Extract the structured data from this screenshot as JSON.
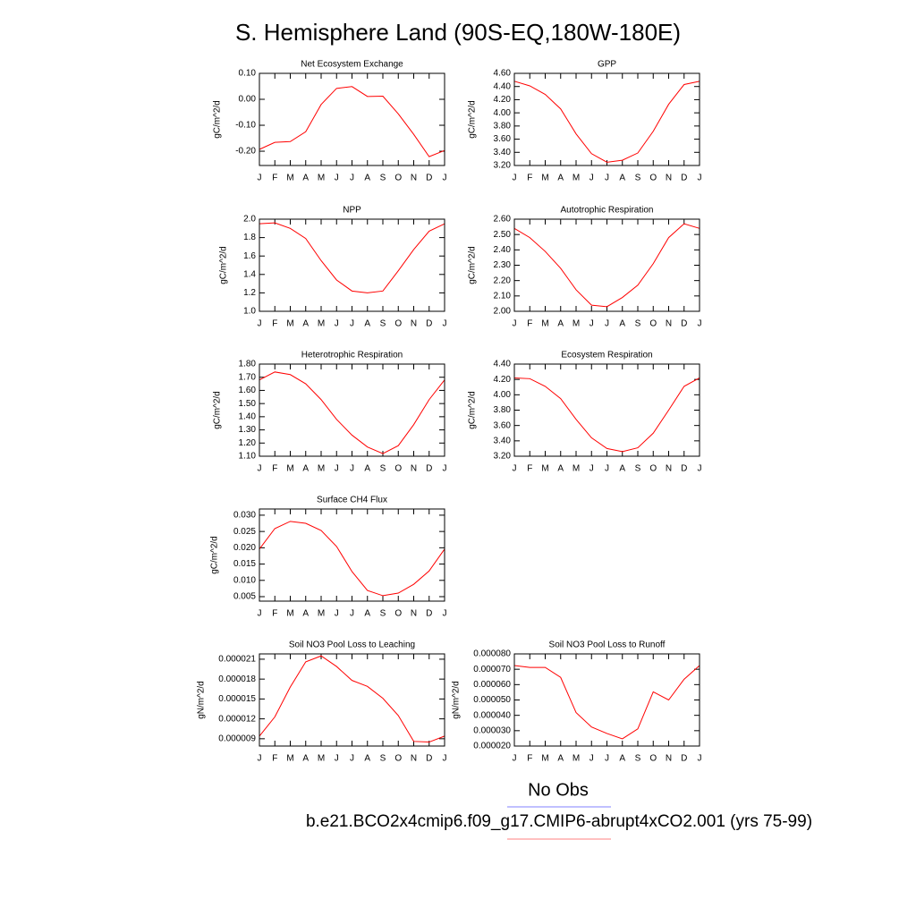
{
  "title": "S. Hemisphere Land (90S-EQ,180W-180E)",
  "legend": [
    {
      "name": "No Obs",
      "color": "#8080ff"
    },
    {
      "name": "b.e21.BCO2x4cmip6.f09_g17.CMIP6-abrupt4xCO2.001 (yrs 75-99)",
      "color": "#ff8080"
    }
  ],
  "chart_data": [
    {
      "type": "line",
      "title": "Net Ecosystem Exchange",
      "ylabel": "gC/m^2/d",
      "color": "#ff0000",
      "categories": [
        "J",
        "F",
        "M",
        "A",
        "M",
        "J",
        "J",
        "A",
        "S",
        "O",
        "N",
        "D",
        "J"
      ],
      "values": [
        -0.193,
        -0.166,
        -0.163,
        -0.125,
        -0.02,
        0.042,
        0.049,
        0.011,
        0.012,
        -0.056,
        -0.135,
        -0.221,
        -0.197
      ],
      "ylim": [
        -0.255,
        0.1
      ],
      "yticks": [
        {
          "value": 0.1,
          "label": "0.10"
        },
        {
          "value": 0,
          "label": "0.00"
        },
        {
          "value": -0.1,
          "label": "-0.10"
        },
        {
          "value": -0.2,
          "label": "-0.20"
        }
      ]
    },
    {
      "type": "line",
      "title": "GPP",
      "ylabel": "gC/m^2/d",
      "color": "#ff0000",
      "categories": [
        "J",
        "F",
        "M",
        "A",
        "M",
        "J",
        "J",
        "A",
        "S",
        "O",
        "N",
        "D",
        "J"
      ],
      "values": [
        4.48,
        4.41,
        4.28,
        4.06,
        3.68,
        3.38,
        3.25,
        3.28,
        3.39,
        3.72,
        4.13,
        4.43,
        4.48
      ],
      "ylim": [
        3.2,
        4.6
      ],
      "yticks": [
        {
          "value": 4.6,
          "label": "4.60"
        },
        {
          "value": 4.4,
          "label": "4.40"
        },
        {
          "value": 4.2,
          "label": "4.20"
        },
        {
          "value": 4.0,
          "label": "4.00"
        },
        {
          "value": 3.8,
          "label": "3.80"
        },
        {
          "value": 3.6,
          "label": "3.60"
        },
        {
          "value": 3.4,
          "label": "3.40"
        },
        {
          "value": 3.2,
          "label": "3.20"
        }
      ]
    },
    {
      "type": "line",
      "title": "NPP",
      "ylabel": "gC/m^2/d",
      "color": "#ff0000",
      "categories": [
        "J",
        "F",
        "M",
        "A",
        "M",
        "J",
        "J",
        "A",
        "S",
        "O",
        "N",
        "D",
        "J"
      ],
      "values": [
        1.95,
        1.96,
        1.9,
        1.79,
        1.55,
        1.34,
        1.22,
        1.2,
        1.22,
        1.44,
        1.67,
        1.87,
        1.95
      ],
      "ylim": [
        1.0,
        2.0
      ],
      "yticks": [
        {
          "value": 2,
          "label": "2.0"
        },
        1.8,
        1.6,
        1.4,
        1.2,
        {
          "value": 1,
          "label": "1.0"
        }
      ]
    },
    {
      "type": "line",
      "title": "Autotrophic Respiration",
      "ylabel": "gC/m^2/d",
      "color": "#ff0000",
      "categories": [
        "J",
        "F",
        "M",
        "A",
        "M",
        "J",
        "J",
        "A",
        "S",
        "O",
        "N",
        "D",
        "J"
      ],
      "values": [
        2.54,
        2.48,
        2.39,
        2.28,
        2.14,
        2.04,
        2.03,
        2.09,
        2.17,
        2.31,
        2.48,
        2.57,
        2.54
      ],
      "ylim": [
        2.0,
        2.6
      ],
      "yticks": [
        {
          "value": 2.6,
          "label": "2.60"
        },
        {
          "value": 2.5,
          "label": "2.50"
        },
        {
          "value": 2.4,
          "label": "2.40"
        },
        {
          "value": 2.3,
          "label": "2.30"
        },
        {
          "value": 2.2,
          "label": "2.20"
        },
        {
          "value": 2.1,
          "label": "2.10"
        },
        {
          "value": 2,
          "label": "2.00"
        }
      ]
    },
    {
      "type": "line",
      "title": "Heterotrophic Respiration",
      "ylabel": "gC/m^2/d",
      "color": "#ff0000",
      "categories": [
        "J",
        "F",
        "M",
        "A",
        "M",
        "J",
        "J",
        "A",
        "S",
        "O",
        "N",
        "D",
        "J"
      ],
      "values": [
        1.68,
        1.74,
        1.72,
        1.65,
        1.53,
        1.38,
        1.26,
        1.17,
        1.12,
        1.18,
        1.34,
        1.53,
        1.68
      ],
      "ylim": [
        1.1,
        1.8
      ],
      "yticks": [
        {
          "value": 1.8,
          "label": "1.80"
        },
        {
          "value": 1.7,
          "label": "1.70"
        },
        {
          "value": 1.6,
          "label": "1.60"
        },
        {
          "value": 1.5,
          "label": "1.50"
        },
        {
          "value": 1.4,
          "label": "1.40"
        },
        {
          "value": 1.3,
          "label": "1.30"
        },
        {
          "value": 1.2,
          "label": "1.20"
        },
        {
          "value": 1.1,
          "label": "1.10"
        }
      ]
    },
    {
      "type": "line",
      "title": "Ecosystem Respiration",
      "ylabel": "gC/m^2/d",
      "color": "#ff0000",
      "categories": [
        "J",
        "F",
        "M",
        "A",
        "M",
        "J",
        "J",
        "A",
        "S",
        "O",
        "N",
        "D",
        "J"
      ],
      "values": [
        4.22,
        4.21,
        4.11,
        3.95,
        3.68,
        3.44,
        3.3,
        3.26,
        3.31,
        3.5,
        3.8,
        4.11,
        4.22
      ],
      "ylim": [
        3.2,
        4.4
      ],
      "yticks": [
        {
          "value": 4.4,
          "label": "4.40"
        },
        {
          "value": 4.2,
          "label": "4.20"
        },
        {
          "value": 4.0,
          "label": "4.00"
        },
        {
          "value": 3.8,
          "label": "3.80"
        },
        {
          "value": 3.6,
          "label": "3.60"
        },
        {
          "value": 3.4,
          "label": "3.40"
        },
        {
          "value": 3.2,
          "label": "3.20"
        }
      ]
    },
    {
      "type": "line",
      "title": "Surface CH4 Flux",
      "ylabel": "gC/m^2/d",
      "color": "#ff0000",
      "categories": [
        "J",
        "F",
        "M",
        "A",
        "M",
        "J",
        "J",
        "A",
        "S",
        "O",
        "N",
        "D",
        "J"
      ],
      "values": [
        0.0196,
        0.0259,
        0.0281,
        0.0275,
        0.0253,
        0.0204,
        0.0127,
        0.0069,
        0.0053,
        0.0061,
        0.0088,
        0.0129,
        0.0196
      ],
      "ylim": [
        0.00363,
        0.0319
      ],
      "yticks": [
        {
          "value": 0.03,
          "label": "0.030"
        },
        0.025,
        {
          "value": 0.02,
          "label": "0.020"
        },
        0.015,
        {
          "value": 0.01,
          "label": "0.010"
        },
        0.005
      ]
    },
    {
      "type": "line",
      "title": "Soil NO3 Pool Loss to Leaching",
      "ylabel": "gN/m^2/d",
      "color": "#ff0000",
      "categories": [
        "J",
        "F",
        "M",
        "A",
        "M",
        "J",
        "J",
        "A",
        "S",
        "O",
        "N",
        "D",
        "J"
      ],
      "values": [
        9.4e-06,
        1.23e-05,
        1.68e-05,
        2.06e-05,
        2.15e-05,
        1.99e-05,
        1.78e-05,
        1.69e-05,
        1.51e-05,
        1.25e-05,
        8.6e-06,
        8.5e-06,
        9.4e-06
      ],
      "ylim": [
        7.9e-06,
        2.18e-05
      ],
      "yticks": [
        2.1e-05,
        1.8e-05,
        1.5e-05,
        1.2e-05,
        9e-06
      ]
    },
    {
      "type": "line",
      "title": "Soil NO3 Pool Loss to Runoff",
      "ylabel": "gN/m^2/d",
      "color": "#ff0000",
      "categories": [
        "J",
        "F",
        "M",
        "A",
        "M",
        "J",
        "J",
        "A",
        "S",
        "O",
        "N",
        "D",
        "J"
      ],
      "values": [
        7.24e-05,
        7.12e-05,
        7.12e-05,
        6.47e-05,
        4.18e-05,
        3.24e-05,
        2.82e-05,
        2.47e-05,
        3.12e-05,
        5.53e-05,
        5e-05,
        6.35e-05,
        7.24e-05
      ],
      "ylim": [
        2e-05,
        8e-05
      ],
      "yticks": [
        {
          "value": 8e-05,
          "label": "0.000080"
        },
        {
          "value": 7e-05,
          "label": "0.000070"
        },
        {
          "value": 6e-05,
          "label": "0.000060"
        },
        {
          "value": 5e-05,
          "label": "0.000050"
        },
        {
          "value": 4e-05,
          "label": "0.000040"
        },
        {
          "value": 3e-05,
          "label": "0.000030"
        },
        {
          "value": 2e-05,
          "label": "0.000020"
        }
      ]
    }
  ]
}
